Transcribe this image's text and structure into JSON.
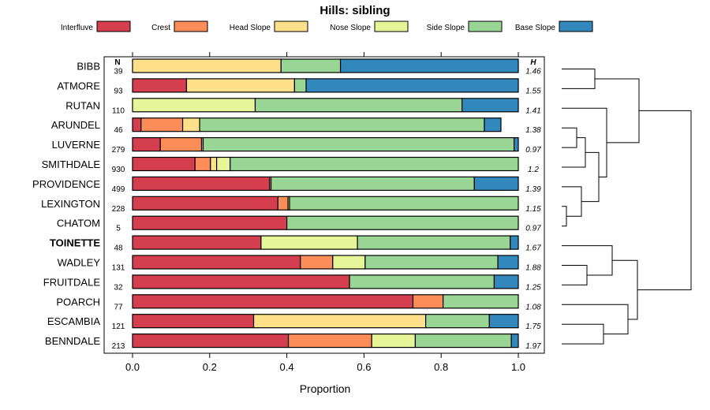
{
  "chart_data": {
    "type": "bar",
    "stacked": true,
    "orientation": "horizontal",
    "title": "Hills: sibling",
    "xlabel": "Proportion",
    "ylabel": "",
    "xlim": [
      0,
      1
    ],
    "xticks": [
      "0.0",
      "0.2",
      "0.4",
      "0.6",
      "0.8",
      "1.0"
    ],
    "n_header": "N",
    "h_header": "H",
    "legend_position": "top",
    "highlight": "TOINETTE",
    "series": [
      {
        "name": "Interfluve",
        "color": "#d53e4f"
      },
      {
        "name": "Crest",
        "color": "#fc8d59"
      },
      {
        "name": "Head Slope",
        "color": "#fee08b"
      },
      {
        "name": "Nose Slope",
        "color": "#e6f598"
      },
      {
        "name": "Side Slope",
        "color": "#99d594"
      },
      {
        "name": "Base Slope",
        "color": "#3288bd"
      }
    ],
    "rows": [
      {
        "name": "BIBB",
        "n": "39",
        "h": "1.46",
        "values": [
          0,
          0,
          0.385,
          0,
          0.154,
          0.461
        ]
      },
      {
        "name": "ATMORE",
        "n": "93",
        "h": "1.55",
        "values": [
          0.14,
          0,
          0.28,
          0,
          0.03,
          0.55
        ]
      },
      {
        "name": "RUTAN",
        "n": "110",
        "h": "1.41",
        "values": [
          0,
          0,
          0,
          0.318,
          0.536,
          0.146
        ]
      },
      {
        "name": "ARUNDEL",
        "n": "46",
        "h": "1.38",
        "values": [
          0.022,
          0.108,
          0.044,
          0,
          0.738,
          0.043
        ]
      },
      {
        "name": "LUVERNE",
        "n": "279",
        "h": "0.97",
        "values": [
          0.072,
          0.107,
          0.004,
          0,
          0.806,
          0.011
        ]
      },
      {
        "name": "SMITHDALE",
        "n": "930",
        "h": "1.2",
        "values": [
          0.162,
          0.04,
          0.016,
          0.035,
          0.747,
          0
        ]
      },
      {
        "name": "PROVIDENCE",
        "n": "499",
        "h": "1.39",
        "values": [
          0.355,
          0.004,
          0,
          0,
          0.527,
          0.114
        ]
      },
      {
        "name": "LEXINGTON",
        "n": "228",
        "h": "1.15",
        "values": [
          0.377,
          0.026,
          0.004,
          0,
          0.593,
          0
        ]
      },
      {
        "name": "CHATOM",
        "n": "5",
        "h": "0.97",
        "values": [
          0.4,
          0,
          0,
          0,
          0.6,
          0
        ]
      },
      {
        "name": "TOINETTE",
        "n": "48",
        "h": "1.67",
        "values": [
          0.333,
          0,
          0,
          0.25,
          0.396,
          0.021
        ]
      },
      {
        "name": "WADLEY",
        "n": "131",
        "h": "1.88",
        "values": [
          0.435,
          0.084,
          0,
          0.084,
          0.344,
          0.053
        ]
      },
      {
        "name": "FRUITDALE",
        "n": "32",
        "h": "1.25",
        "values": [
          0.5625,
          0,
          0,
          0,
          0.375,
          0.0625
        ]
      },
      {
        "name": "POARCH",
        "n": "77",
        "h": "1.08",
        "values": [
          0.727,
          0.078,
          0,
          0,
          0.195,
          0
        ]
      },
      {
        "name": "ESCAMBIA",
        "n": "121",
        "h": "1.75",
        "values": [
          0.314,
          0,
          0.446,
          0,
          0.165,
          0.075
        ]
      },
      {
        "name": "BENNDALE",
        "n": "213",
        "h": "1.97",
        "values": [
          0.404,
          0.216,
          0,
          0.113,
          0.249,
          0.018
        ]
      }
    ]
  }
}
